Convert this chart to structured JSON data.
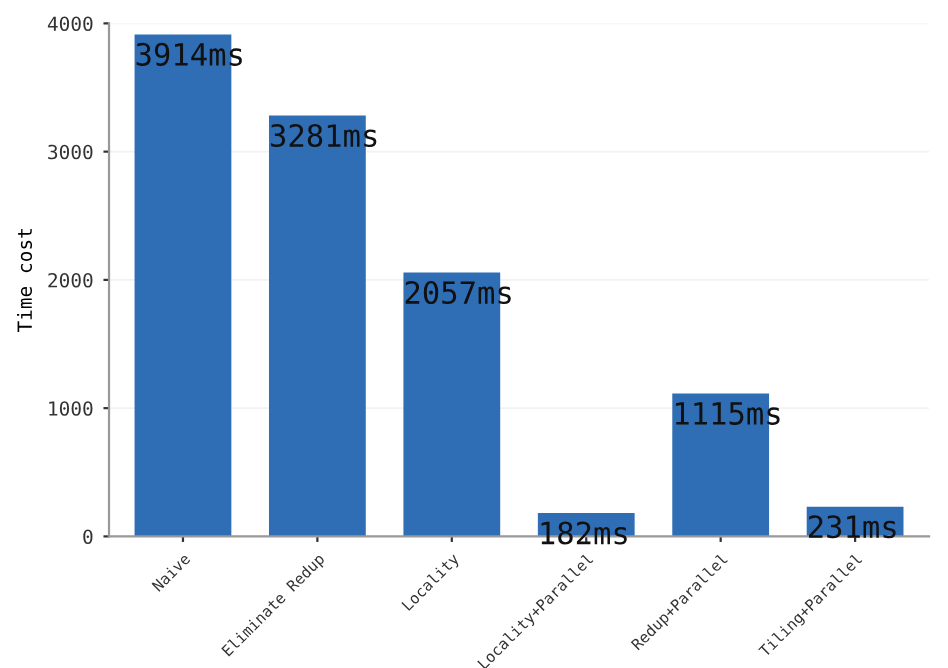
{
  "chart_data": {
    "type": "bar",
    "ylabel": "Time cost",
    "categories": [
      "Naive",
      "Eliminate Redup",
      "Locality",
      "Locality+Parallel",
      "Redup+Parallel",
      "Tiling+Parallel"
    ],
    "values": [
      3914,
      3281,
      2057,
      182,
      1115,
      231
    ],
    "value_labels": [
      "3914ms",
      "3281ms",
      "2057ms",
      "182ms",
      "1115ms",
      "231ms"
    ],
    "color": "#2f6eb5",
    "ylim": [
      0,
      4000
    ],
    "yticks": [
      0,
      1000,
      2000,
      3000,
      4000
    ],
    "grid": "y"
  }
}
